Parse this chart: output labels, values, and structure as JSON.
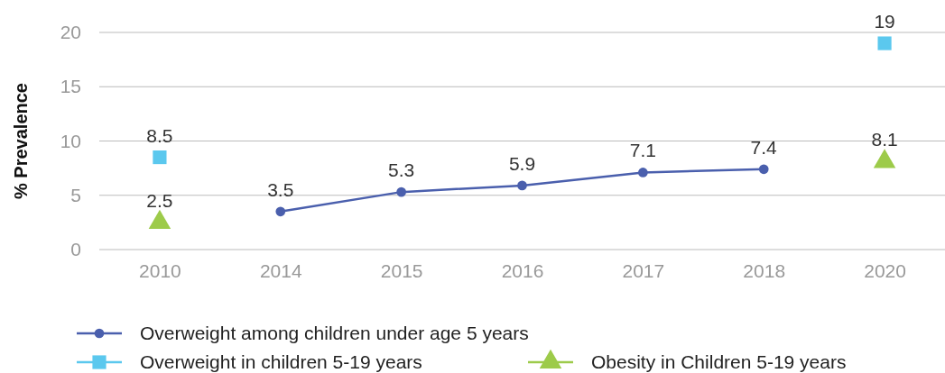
{
  "chart_data": {
    "type": "line",
    "ylabel": "% Prevalence",
    "categories": [
      "2010",
      "2014",
      "2015",
      "2016",
      "2017",
      "2018",
      "2020"
    ],
    "series": [
      {
        "name": "Overweight among children under age 5 years",
        "type": "line",
        "marker": "circle",
        "color": "#4a5fad",
        "values": [
          null,
          3.5,
          5.3,
          5.9,
          7.1,
          7.4,
          null
        ]
      },
      {
        "name": "Overweight in children 5-19 years",
        "type": "scatter",
        "marker": "square",
        "color": "#5bc8ee",
        "values": [
          8.5,
          null,
          null,
          null,
          null,
          null,
          19
        ]
      },
      {
        "name": "Obesity in Children 5-19 years",
        "type": "scatter",
        "marker": "triangle",
        "color": "#9dcb4a",
        "values": [
          2.5,
          null,
          null,
          null,
          null,
          null,
          8.1
        ]
      }
    ],
    "ylim": [
      0,
      20
    ],
    "yticks": [
      0,
      5,
      10,
      15,
      20
    ],
    "grid": "y",
    "legend": "bottom",
    "data_labels": true
  }
}
